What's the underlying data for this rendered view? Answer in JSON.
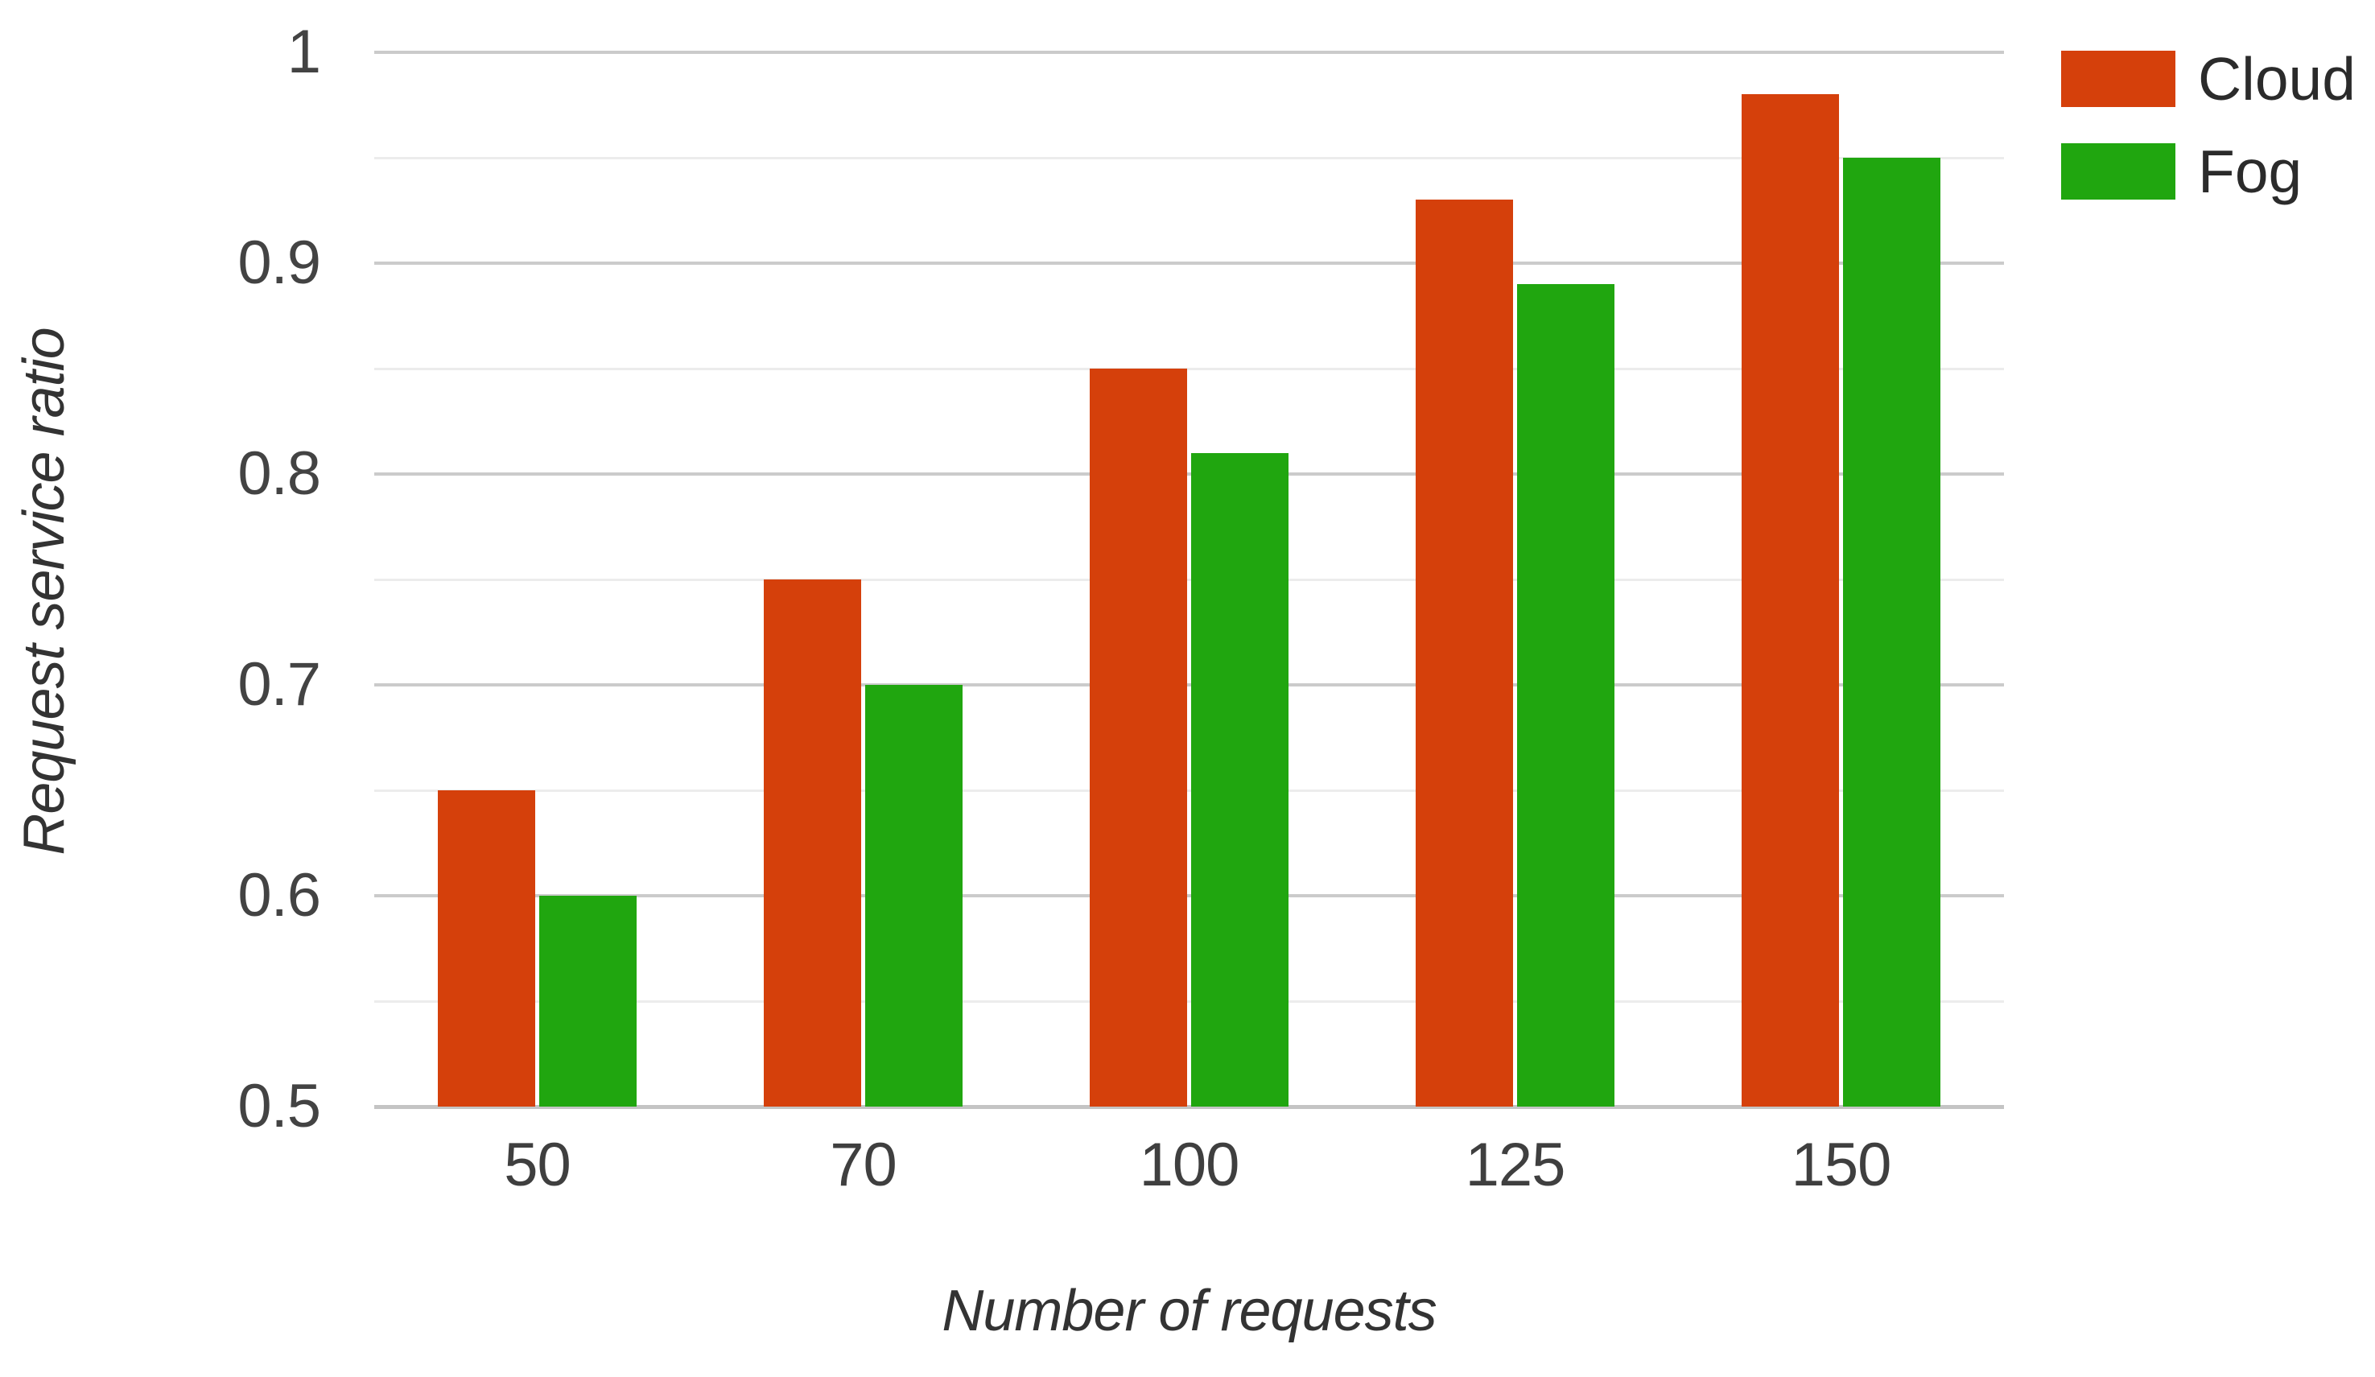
{
  "chart_data": {
    "type": "bar",
    "title": "",
    "xlabel": "Number of requests",
    "ylabel": "Request service ratio",
    "categories": [
      "50",
      "70",
      "100",
      "125",
      "150"
    ],
    "series": [
      {
        "name": "Cloud",
        "color": "#d5400b",
        "values": [
          0.65,
          0.75,
          0.85,
          0.93,
          0.98
        ]
      },
      {
        "name": "Fog",
        "color": "#20a60f",
        "values": [
          0.6,
          0.7,
          0.81,
          0.89,
          0.95
        ]
      }
    ],
    "ylim": [
      0.5,
      1.0
    ],
    "yticks": {
      "major": [
        0.5,
        0.6,
        0.7,
        0.8,
        0.9,
        1.0
      ],
      "labels": [
        "0.5",
        "0.6",
        "0.7",
        "0.8",
        "0.9",
        "1"
      ],
      "minor": [
        0.55,
        0.65,
        0.75,
        0.85,
        0.95
      ]
    },
    "grid": "horizontal",
    "legend_position": "top-right",
    "colors": {
      "grid_major": "#cbcbcb",
      "grid_minor": "#ececec",
      "axis_line": "#c4c4c4",
      "tick_text": "#3f3f3f",
      "title_text": "#333333"
    }
  }
}
